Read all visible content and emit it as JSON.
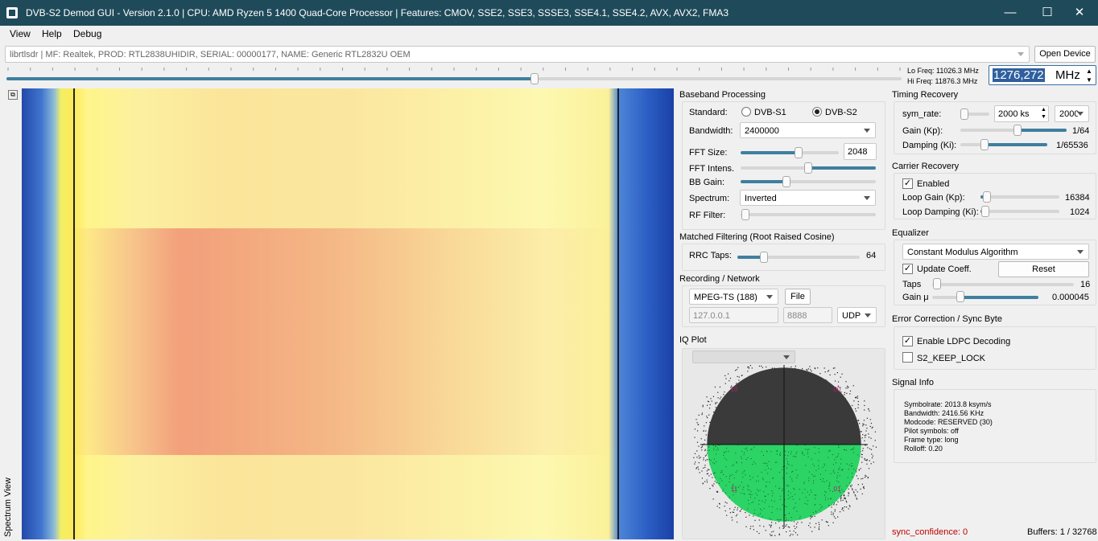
{
  "window": {
    "title": "DVB-S2 Demod GUI - Version 2.1.0 | CPU: AMD Ryzen 5 1400 Quad-Core Processor          | Features: CMOV, SSE2, SSE3, SSSE3, SSE4.1, SSE4.2, AVX, AVX2, FMA3",
    "minimize": "—",
    "maximize": "☐",
    "close": "✕"
  },
  "menu": [
    "View",
    "Help",
    "Debug"
  ],
  "device": {
    "selected": "librtlsdr | MF: Realtek, PROD: RTL2838UHIDIR, SERIAL: 00000177, NAME: Generic RTL2832U OEM",
    "open_label": "Open Device"
  },
  "tuning": {
    "lo_freq": "Lo Freq: 11026.3 MHz",
    "hi_freq": "Hi Freq: 11876.3 MHz",
    "frequency": "1276,272",
    "unit": "MHz",
    "slider_fraction": 0.59
  },
  "spectrum": {
    "label": "Spectrum View"
  },
  "baseband": {
    "title": "Baseband Processing",
    "standard_label": "Standard:",
    "dvb_s1": "DVB-S1",
    "dvb_s2": "DVB-S2",
    "standard_selected": "DVB-S2",
    "bandwidth_label": "Bandwidth:",
    "bandwidth_value": "2400000",
    "fft_size_label": "FFT Size:",
    "fft_size_value": "2048",
    "fft_intens_label": "FFT Intens.",
    "bb_gain_label": "BB Gain:",
    "spectrum_label": "Spectrum:",
    "spectrum_value": "Inverted",
    "rf_filter_label": "RF Filter:"
  },
  "matched": {
    "title": "Matched Filtering (Root Raised Cosine)",
    "rrc_label": "RRC Taps:",
    "rrc_value": "64"
  },
  "recording": {
    "title": "Recording / Network",
    "format": "MPEG-TS (188)",
    "file_label": "File",
    "ip": "127.0.0.1",
    "port": "8888",
    "protocol": "UDP"
  },
  "iq": {
    "title": "IQ Plot",
    "marks": [
      "10",
      "00",
      "11",
      "01"
    ]
  },
  "timing": {
    "title": "Timing Recovery",
    "sym_rate_label": "sym_rate:",
    "sym_rate_value": "2000 ks",
    "sym_rate_combo": "2000",
    "gain_label": "Gain (Kp):",
    "gain_value": "1/64",
    "damping_label": "Damping (Ki):",
    "damping_value": "1/65536"
  },
  "carrier": {
    "title": "Carrier Recovery",
    "enabled_label": "Enabled",
    "loop_gain_label": "Loop Gain (Kp):",
    "loop_gain_value": "16384",
    "loop_damping_label": "Loop Damping (Ki):",
    "loop_damping_value": "1024"
  },
  "equalizer": {
    "title": "Equalizer",
    "algorithm": "Constant Modulus Algorithm",
    "update_label": "Update Coeff.",
    "reset_label": "Reset",
    "taps_label": "Taps",
    "taps_value": "16",
    "gain_label": "Gain μ",
    "gain_value": "0.000045"
  },
  "error": {
    "title": "Error Correction / Sync Byte",
    "ldpc_label": "Enable LDPC Decoding",
    "keep_lock_label": "S2_KEEP_LOCK"
  },
  "signal": {
    "title": "Signal Info",
    "lines": [
      "Symbolrate: 2013.8 ksym/s",
      "Bandwidth: 2416.56 KHz",
      "Modcode: RESERVED (30)",
      "Pilot symbols: off",
      "Frame type: long",
      "Rolloff: 0.20"
    ]
  },
  "status": {
    "sync_confidence": "sync_confidence: 0",
    "buffers": "Buffers: 1 / 32768"
  },
  "colors": {
    "titlebar": "#1f4a5a",
    "slider_fill": "#3f7f9f",
    "iq_upper": "#3a3a3a",
    "iq_lower": "#2bd465",
    "iq_mark": "#b0206e"
  }
}
